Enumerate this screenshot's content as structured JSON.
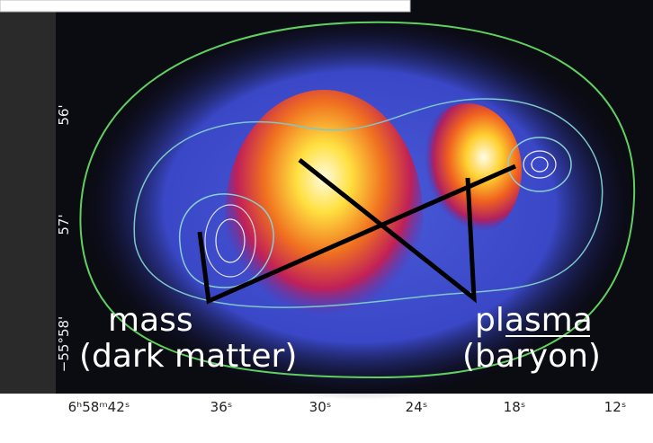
{
  "image": {
    "y_ticks": [
      "56'",
      "57'",
      "−55°58'"
    ],
    "x_ticks": [
      "6ʰ58ᵐ42ˢ",
      "36ˢ",
      "30ˢ",
      "24ˢ",
      "18ˢ",
      "12ˢ"
    ],
    "annotations": {
      "mass": {
        "line1": "mass",
        "line2": "(dark matter)"
      },
      "plasma": {
        "line1": "plasma",
        "line2": "(baryon)"
      }
    }
  }
}
